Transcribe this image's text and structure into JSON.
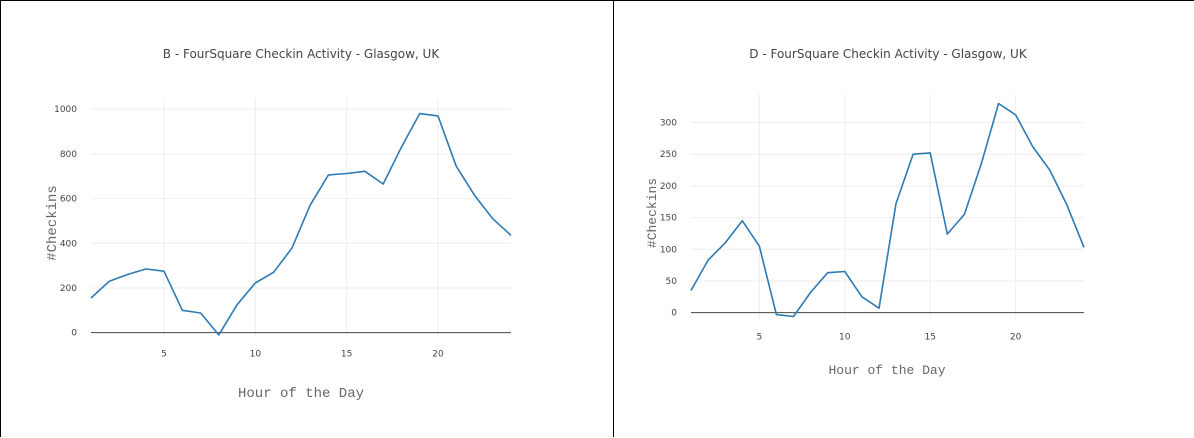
{
  "colors": {
    "line": "#2e7ab3",
    "grid": "#eeeeee",
    "zero_line": "#444444",
    "panel_border": "#000000"
  },
  "chart_data": [
    {
      "type": "line",
      "title": "B - FourSquare Checkin Activity - Glasgow, UK",
      "xlabel": "Hour of the Day",
      "ylabel": "#Checkins",
      "xlim": [
        1,
        24
      ],
      "ylim": [
        -15,
        1050
      ],
      "xticks": [
        5,
        10,
        15,
        20
      ],
      "yticks": [
        0,
        200,
        400,
        600,
        800,
        1000
      ],
      "grid": true,
      "series": [
        {
          "x": [
            1,
            2,
            3,
            4,
            5,
            6,
            7,
            8,
            9,
            10,
            11,
            12,
            13,
            14,
            15,
            16,
            17,
            18,
            19,
            20,
            21,
            22,
            23,
            24
          ],
          "values": [
            155,
            230,
            260,
            285,
            275,
            100,
            88,
            -10,
            125,
            222,
            270,
            378,
            570,
            706,
            712,
            722,
            665,
            830,
            980,
            970,
            745,
            615,
            510,
            435
          ]
        }
      ]
    },
    {
      "type": "line",
      "title": "D - FourSquare Checkin Activity - Glasgow, UK",
      "xlabel": "Hour of the Day",
      "ylabel": "#Checkins",
      "xlim": [
        1,
        24
      ],
      "ylim": [
        -10,
        345
      ],
      "xticks": [
        5,
        10,
        15,
        20
      ],
      "yticks": [
        0,
        50,
        100,
        150,
        200,
        250,
        300
      ],
      "grid": true,
      "series": [
        {
          "x": [
            1,
            2,
            3,
            4,
            5,
            6,
            7,
            8,
            9,
            10,
            11,
            12,
            13,
            14,
            15,
            16,
            17,
            18,
            19,
            20,
            21,
            22,
            23,
            24
          ],
          "values": [
            35,
            83,
            110,
            145,
            105,
            -3,
            -6,
            32,
            63,
            65,
            25,
            7,
            172,
            250,
            252,
            124,
            155,
            236,
            330,
            312,
            262,
            225,
            170,
            103
          ]
        }
      ]
    }
  ]
}
